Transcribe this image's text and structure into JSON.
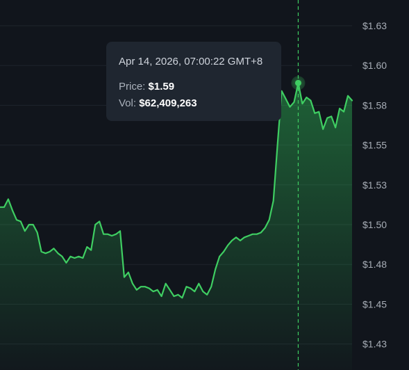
{
  "colors": {
    "background": "#11151c",
    "line": "#3fce62",
    "grid": "#1f252d",
    "axis_text": "#a7adb6",
    "tooltip_bg": "#1f2630"
  },
  "tooltip": {
    "date": "Apr 14, 2026, 07:00:22 GMT+8",
    "price_label": "Price:",
    "price_value": "$1.59",
    "vol_label": "Vol:",
    "vol_value": "$62,409,263"
  },
  "chart_data": {
    "type": "area",
    "y_ticks": [
      "$1.63",
      "$1.60",
      "$1.58",
      "$1.55",
      "$1.53",
      "$1.50",
      "$1.48",
      "$1.45",
      "$1.43"
    ],
    "ylim": [
      1.425,
      1.635
    ],
    "grid": true,
    "hover_index": 72,
    "values": [
      1.516,
      1.516,
      1.521,
      1.514,
      1.508,
      1.507,
      1.501,
      1.505,
      1.505,
      1.5,
      1.488,
      1.487,
      1.488,
      1.49,
      1.487,
      1.485,
      1.481,
      1.485,
      1.484,
      1.485,
      1.484,
      1.491,
      1.489,
      1.505,
      1.507,
      1.499,
      1.499,
      1.498,
      1.499,
      1.501,
      1.472,
      1.475,
      1.468,
      1.464,
      1.466,
      1.466,
      1.465,
      1.463,
      1.464,
      1.46,
      1.468,
      1.464,
      1.46,
      1.461,
      1.459,
      1.466,
      1.465,
      1.463,
      1.468,
      1.463,
      1.461,
      1.466,
      1.477,
      1.485,
      1.488,
      1.492,
      1.495,
      1.497,
      1.495,
      1.497,
      1.498,
      1.499,
      1.499,
      1.5,
      1.503,
      1.508,
      1.52,
      1.555,
      1.589,
      1.584,
      1.579,
      1.582,
      1.594,
      1.581,
      1.585,
      1.583,
      1.575,
      1.576,
      1.565,
      1.572,
      1.573,
      1.566,
      1.578,
      1.576,
      1.586,
      1.583
    ]
  }
}
